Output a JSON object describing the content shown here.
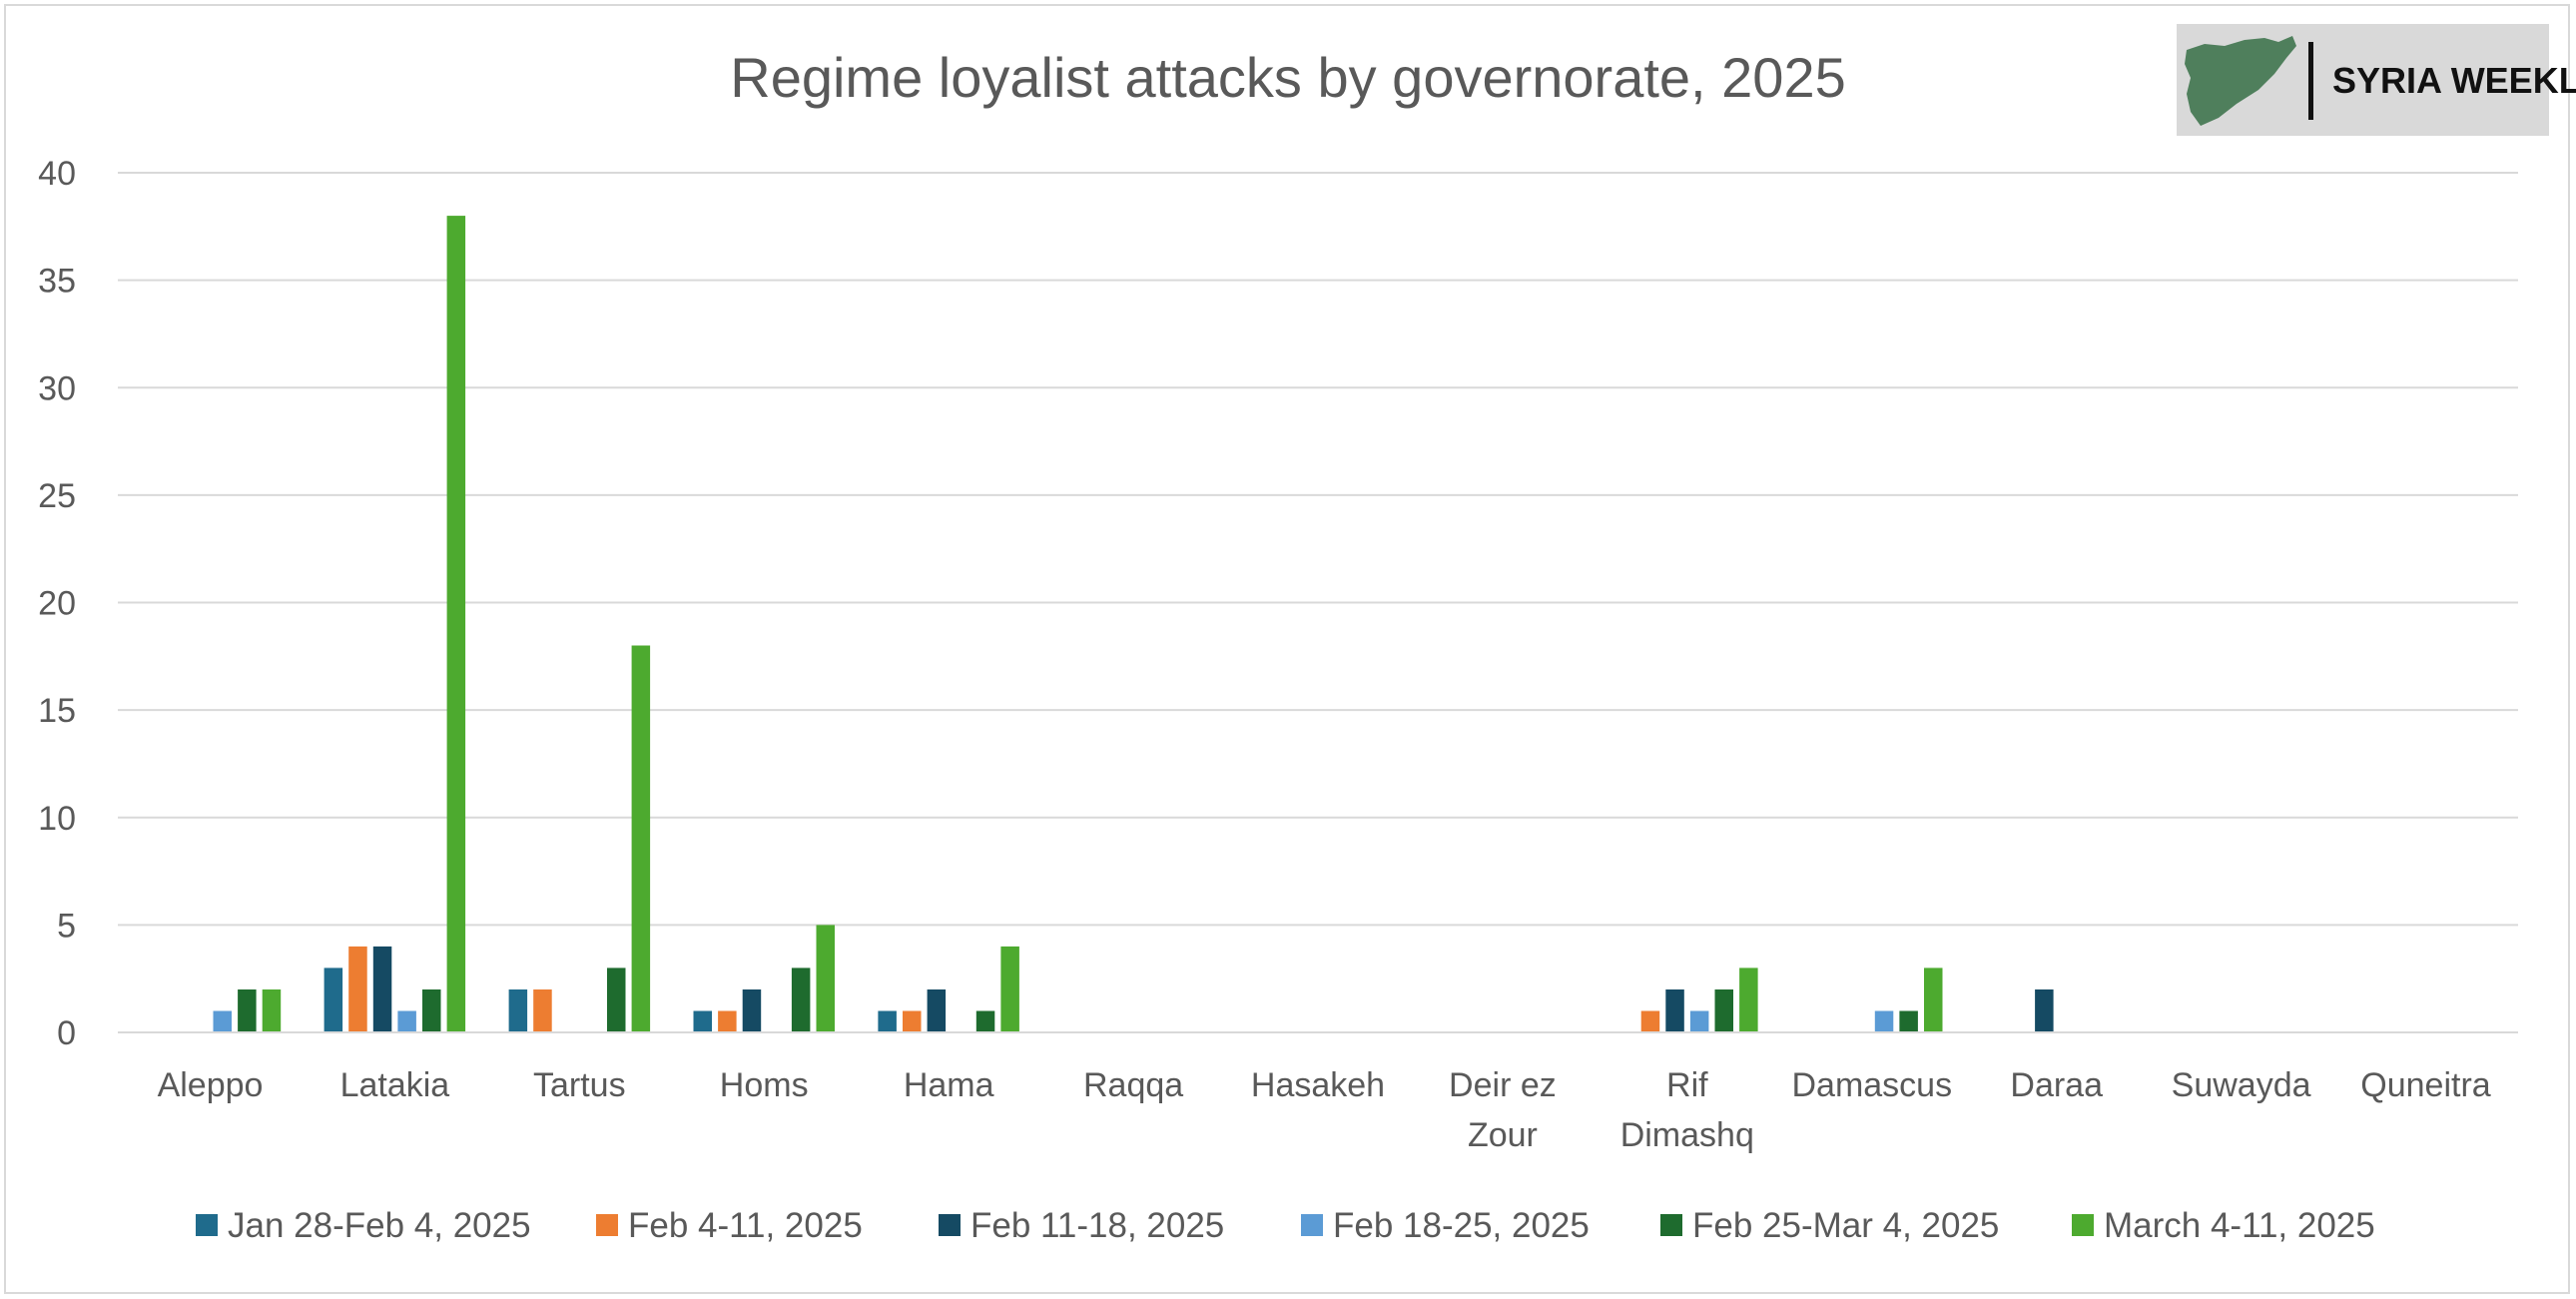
{
  "chart_data": {
    "type": "bar",
    "title": "Regime loyalist attacks by governorate, 2025",
    "xlabel": "",
    "ylabel": "",
    "ylim": [
      0,
      40
    ],
    "yticks": [
      0,
      5,
      10,
      15,
      20,
      25,
      30,
      35,
      40
    ],
    "grid": true,
    "legend_position": "bottom",
    "categories": [
      "Aleppo",
      "Latakia",
      "Tartus",
      "Homs",
      "Hama",
      "Raqqa",
      "Hasakeh",
      "Deir ez Zour",
      "Rif Dimashq",
      "Damascus",
      "Daraa",
      "Suwayda",
      "Quneitra"
    ],
    "category_label_lines": [
      [
        "Aleppo"
      ],
      [
        "Latakia"
      ],
      [
        "Tartus"
      ],
      [
        "Homs"
      ],
      [
        "Hama"
      ],
      [
        "Raqqa"
      ],
      [
        "Hasakeh"
      ],
      [
        "Deir ez",
        "Zour"
      ],
      [
        "Rif",
        "Dimashq"
      ],
      [
        "Damascus"
      ],
      [
        "Daraa"
      ],
      [
        "Suwayda"
      ],
      [
        "Quneitra"
      ]
    ],
    "series": [
      {
        "name": "Jan 28-Feb 4, 2025",
        "color": "#1f6b8c",
        "values": [
          0,
          3,
          2,
          1,
          1,
          0,
          0,
          0,
          0,
          0,
          0,
          0,
          0
        ]
      },
      {
        "name": "Feb 4-11, 2025",
        "color": "#ed7d31",
        "values": [
          0,
          4,
          2,
          1,
          1,
          0,
          0,
          0,
          1,
          0,
          0,
          0,
          0
        ]
      },
      {
        "name": "Feb 11-18, 2025",
        "color": "#154a63",
        "values": [
          0,
          4,
          0,
          2,
          2,
          0,
          0,
          0,
          2,
          0,
          2,
          0,
          0
        ]
      },
      {
        "name": "Feb 18-25, 2025",
        "color": "#5b9bd5",
        "values": [
          1,
          1,
          0,
          0,
          0,
          0,
          0,
          0,
          1,
          1,
          0,
          0,
          0
        ]
      },
      {
        "name": "Feb 25-Mar 4, 2025",
        "color": "#1e6b2e",
        "values": [
          2,
          2,
          3,
          3,
          1,
          0,
          0,
          0,
          2,
          1,
          0,
          0,
          0
        ]
      },
      {
        "name": "March 4-11, 2025",
        "color": "#4daa2f",
        "values": [
          2,
          38,
          18,
          5,
          4,
          0,
          0,
          0,
          3,
          3,
          0,
          0,
          0
        ]
      }
    ]
  },
  "logo": {
    "text": "SYRIA WEEKLY",
    "icon": "syria-map-icon",
    "map_color": "#4f7f5c",
    "background": "#d9d9d9"
  },
  "colors": {
    "gridline": "#d9d9d9",
    "text": "#595959"
  }
}
